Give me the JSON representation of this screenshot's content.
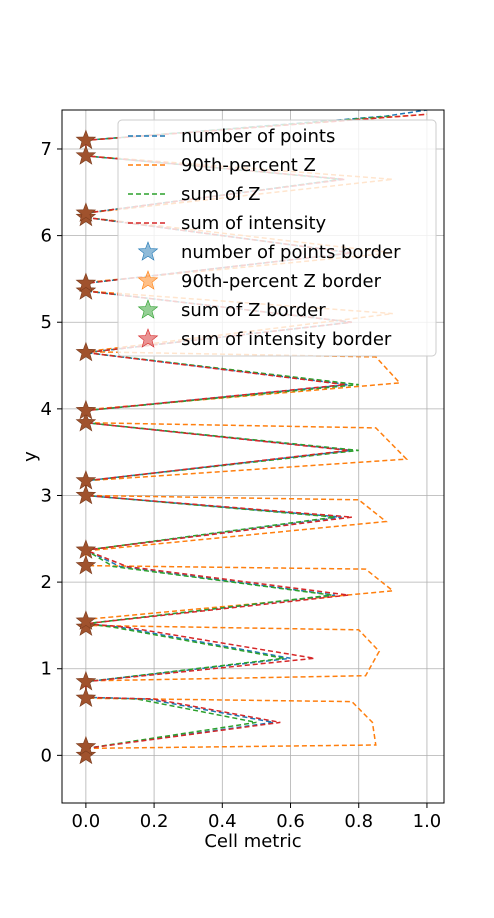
{
  "chart_data": {
    "type": "line",
    "title": "",
    "xlabel": "Cell metric",
    "ylabel": "y",
    "xlim": [
      -0.07,
      1.05
    ],
    "ylim": [
      -0.55,
      7.45
    ],
    "xticks": [
      "0.0",
      "0.2",
      "0.4",
      "0.6",
      "0.8",
      "1.0"
    ],
    "xtick_values": [
      0.0,
      0.2,
      0.4,
      0.6,
      0.8,
      1.0
    ],
    "yticks": [
      "0",
      "1",
      "2",
      "3",
      "4",
      "5",
      "6",
      "7"
    ],
    "ytick_values": [
      0,
      1,
      2,
      3,
      4,
      5,
      6,
      7
    ],
    "grid": true,
    "legend_position": "top-right",
    "colors": {
      "number_of_points": "#1f77b4",
      "p90_z": "#ff7f0e",
      "sum_z": "#2ca02c",
      "sum_intensity": "#d62728",
      "border_marker": "#a0522d"
    },
    "legend": [
      {
        "label": "number of points",
        "kind": "line",
        "color": "#1f77b4"
      },
      {
        "label": "90th-percent Z",
        "kind": "line",
        "color": "#ff7f0e"
      },
      {
        "label": "sum of Z",
        "kind": "line",
        "color": "#2ca02c"
      },
      {
        "label": "sum of intensity",
        "kind": "line",
        "color": "#d62728"
      },
      {
        "label": "number of points border",
        "kind": "star",
        "color": "#1f77b4"
      },
      {
        "label": "90th-percent Z border",
        "kind": "star",
        "color": "#ff7f0e"
      },
      {
        "label": "sum of Z border",
        "kind": "star",
        "color": "#2ca02c"
      },
      {
        "label": "sum of intensity border",
        "kind": "star",
        "color": "#d62728"
      }
    ],
    "series": [
      {
        "name": "number of points",
        "color": "#1f77b4",
        "points": [
          [
            0,
            0.08
          ],
          [
            0.55,
            0.38
          ],
          [
            0.18,
            0.65
          ],
          [
            0.0,
            0.67
          ],
          [
            0.0,
            0.85
          ],
          [
            0.6,
            1.12
          ],
          [
            0.1,
            1.48
          ],
          [
            0.0,
            1.52
          ],
          [
            0.73,
            1.85
          ],
          [
            0.1,
            2.18
          ],
          [
            0.0,
            2.37
          ],
          [
            0.75,
            2.75
          ],
          [
            0.0,
            3.0
          ],
          [
            0.0,
            3.17
          ],
          [
            0.78,
            3.52
          ],
          [
            0.0,
            3.84
          ],
          [
            0.0,
            3.98
          ],
          [
            0.77,
            4.28
          ],
          [
            0.0,
            4.65
          ],
          [
            0.78,
            5.0
          ],
          [
            0.0,
            5.36
          ],
          [
            0.0,
            5.45
          ],
          [
            0.78,
            5.8
          ],
          [
            0.0,
            6.21
          ],
          [
            0.0,
            6.26
          ],
          [
            0.75,
            6.65
          ],
          [
            0.0,
            6.92
          ],
          [
            0.0,
            7.1
          ],
          [
            0.88,
            7.38
          ],
          [
            1.0,
            7.45
          ]
        ]
      },
      {
        "name": "90th-percent Z",
        "color": "#ff7f0e",
        "points": [
          [
            0,
            0.08
          ],
          [
            0.85,
            0.12
          ],
          [
            0.84,
            0.38
          ],
          [
            0.78,
            0.62
          ],
          [
            0.0,
            0.66
          ],
          [
            0.0,
            0.86
          ],
          [
            0.82,
            0.92
          ],
          [
            0.86,
            1.2
          ],
          [
            0.8,
            1.45
          ],
          [
            0.0,
            1.5
          ],
          [
            0.0,
            1.57
          ],
          [
            0.9,
            1.9
          ],
          [
            0.82,
            2.15
          ],
          [
            0.0,
            2.19
          ],
          [
            0.0,
            2.36
          ],
          [
            0.88,
            2.7
          ],
          [
            0.8,
            2.95
          ],
          [
            0.0,
            3.0
          ],
          [
            0.0,
            3.17
          ],
          [
            0.94,
            3.42
          ],
          [
            0.85,
            3.78
          ],
          [
            0.0,
            3.84
          ],
          [
            0.0,
            3.99
          ],
          [
            0.92,
            4.3
          ],
          [
            0.85,
            4.6
          ],
          [
            0.0,
            4.66
          ],
          [
            0.9,
            5.1
          ],
          [
            0.0,
            5.36
          ],
          [
            0.0,
            5.46
          ],
          [
            0.9,
            5.8
          ],
          [
            0.0,
            6.21
          ],
          [
            0.0,
            6.26
          ],
          [
            0.9,
            6.65
          ],
          [
            0.0,
            6.92
          ],
          [
            0.0,
            7.1
          ],
          [
            1.0,
            7.4
          ]
        ]
      },
      {
        "name": "sum of Z",
        "color": "#2ca02c",
        "points": [
          [
            0,
            0.08
          ],
          [
            0.5,
            0.38
          ],
          [
            0.15,
            0.65
          ],
          [
            0.0,
            0.67
          ],
          [
            0.0,
            0.85
          ],
          [
            0.58,
            1.12
          ],
          [
            0.08,
            1.48
          ],
          [
            0.0,
            1.52
          ],
          [
            0.72,
            1.85
          ],
          [
            0.08,
            2.18
          ],
          [
            0.0,
            2.37
          ],
          [
            0.73,
            2.75
          ],
          [
            0.0,
            3.0
          ],
          [
            0.0,
            3.17
          ],
          [
            0.8,
            3.52
          ],
          [
            0.0,
            3.84
          ],
          [
            0.0,
            3.98
          ],
          [
            0.8,
            4.28
          ],
          [
            0.0,
            4.65
          ],
          [
            0.78,
            5.0
          ],
          [
            0.0,
            5.36
          ],
          [
            0.0,
            5.45
          ],
          [
            0.78,
            5.8
          ],
          [
            0.0,
            6.21
          ],
          [
            0.0,
            6.26
          ],
          [
            0.75,
            6.65
          ],
          [
            0.0,
            6.92
          ],
          [
            0.0,
            7.1
          ],
          [
            0.9,
            7.38
          ]
        ]
      },
      {
        "name": "sum of intensity",
        "color": "#d62728",
        "points": [
          [
            0,
            0.08
          ],
          [
            0.57,
            0.38
          ],
          [
            0.2,
            0.65
          ],
          [
            0.0,
            0.67
          ],
          [
            0.0,
            0.85
          ],
          [
            0.67,
            1.12
          ],
          [
            0.12,
            1.48
          ],
          [
            0.0,
            1.52
          ],
          [
            0.77,
            1.85
          ],
          [
            0.12,
            2.18
          ],
          [
            0.0,
            2.37
          ],
          [
            0.78,
            2.75
          ],
          [
            0.0,
            3.0
          ],
          [
            0.0,
            3.17
          ],
          [
            0.77,
            3.52
          ],
          [
            0.0,
            3.84
          ],
          [
            0.0,
            3.98
          ],
          [
            0.76,
            4.28
          ],
          [
            0.0,
            4.65
          ],
          [
            0.78,
            5.0
          ],
          [
            0.0,
            5.36
          ],
          [
            0.0,
            5.45
          ],
          [
            0.78,
            5.8
          ],
          [
            0.0,
            6.21
          ],
          [
            0.0,
            6.26
          ],
          [
            0.76,
            6.65
          ],
          [
            0.0,
            6.92
          ],
          [
            0.0,
            7.1
          ],
          [
            1.0,
            7.4
          ]
        ]
      }
    ],
    "border_points_y": [
      0.0,
      0.1,
      0.66,
      0.85,
      1.48,
      1.55,
      2.19,
      2.37,
      3.0,
      3.17,
      3.84,
      3.98,
      4.65,
      5.36,
      5.45,
      6.21,
      6.26,
      6.92,
      7.1
    ],
    "border_points_x": 0.0
  }
}
